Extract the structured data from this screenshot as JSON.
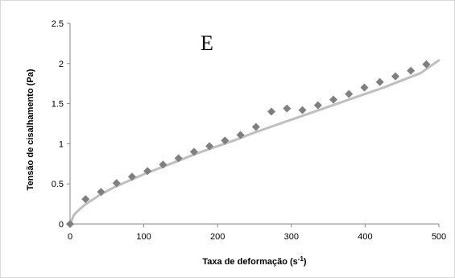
{
  "chart_data": {
    "type": "scatter",
    "title": "",
    "annotation": "E",
    "xlabel": "Taxa de deformação (s",
    "xlabel_sup": "-1",
    "xlabel_suffix": ")",
    "ylabel": "Tensão de cisalhamento  (Pa)",
    "xlim": [
      0,
      500
    ],
    "ylim": [
      0,
      2.5
    ],
    "x_ticks": [
      "0",
      "100",
      "200",
      "300",
      "400",
      "500"
    ],
    "y_ticks": [
      "0",
      "0.5",
      "1",
      "1.5",
      "2",
      "2.5"
    ],
    "grid": false,
    "legend": "none",
    "series": [
      {
        "kind": "points",
        "marker": "diamond",
        "color": "#7f7f7f",
        "x": [
          0,
          21,
          42,
          63,
          84,
          105,
          126,
          147,
          168,
          189,
          210,
          231,
          252,
          273,
          294,
          315,
          336,
          357,
          378,
          399,
          420,
          441,
          462,
          483
        ],
        "y": [
          0,
          0.31,
          0.4,
          0.51,
          0.59,
          0.66,
          0.74,
          0.82,
          0.9,
          0.97,
          1.04,
          1.11,
          1.21,
          1.4,
          1.44,
          1.42,
          1.48,
          1.55,
          1.62,
          1.7,
          1.77,
          1.84,
          1.91,
          1.99
        ]
      },
      {
        "kind": "fit-curve",
        "color": "#bfbfbf",
        "x": [
          0,
          5,
          10,
          20,
          40,
          60,
          80,
          100,
          125,
          150,
          175,
          200,
          225,
          250,
          275,
          300,
          325,
          350,
          375,
          400,
          425,
          450,
          475,
          500
        ],
        "y": [
          0,
          0.11,
          0.16,
          0.24,
          0.36,
          0.46,
          0.54,
          0.62,
          0.71,
          0.8,
          0.89,
          0.97,
          1.05,
          1.14,
          1.22,
          1.3,
          1.38,
          1.46,
          1.54,
          1.62,
          1.7,
          1.79,
          1.88,
          2.04
        ]
      }
    ]
  }
}
